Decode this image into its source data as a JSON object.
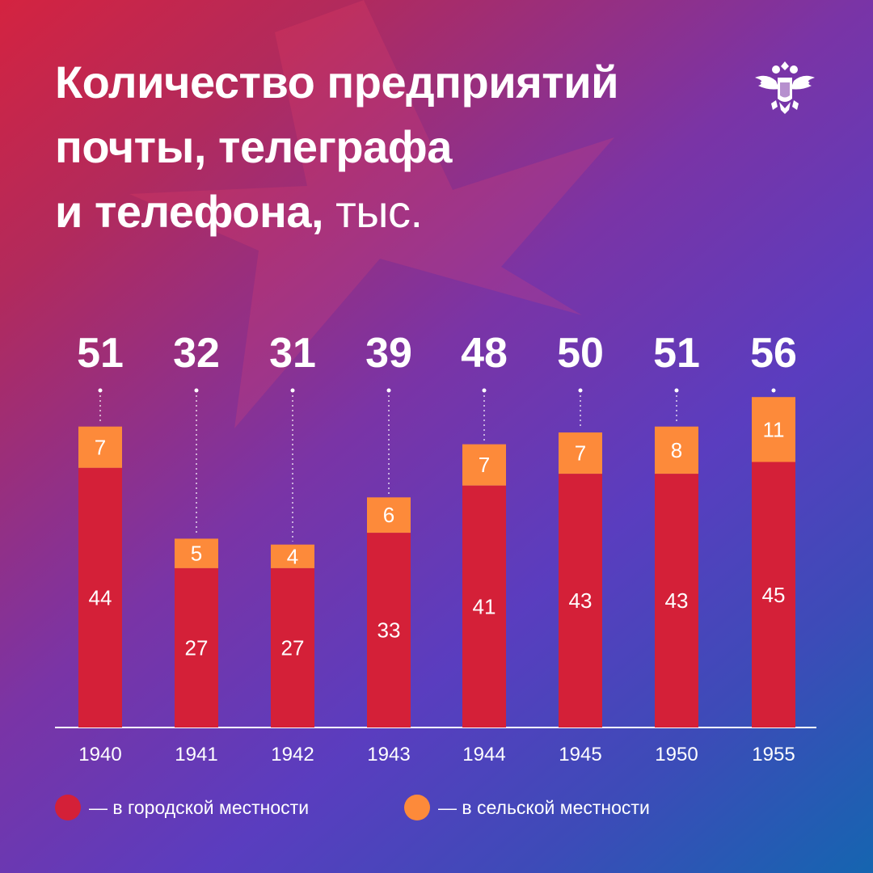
{
  "title": {
    "line1": "Количество предприятий",
    "line2": "почты, телеграфа",
    "line3": "и телефона,",
    "unit": "тыс."
  },
  "colors": {
    "urban": "#d42038",
    "rural": "#fd8a3a",
    "text": "#ffffff"
  },
  "emblem_icon": "double-headed-eagle-emblem",
  "legend": {
    "urban": "— в городской местности",
    "rural": "— в сельской местности"
  },
  "chart_data": {
    "type": "bar",
    "stacked": true,
    "categories": [
      "1940",
      "1941",
      "1942",
      "1943",
      "1944",
      "1945",
      "1950",
      "1955"
    ],
    "series": [
      {
        "name": "в городской местности",
        "color": "#d42038",
        "values": [
          44,
          27,
          27,
          33,
          41,
          43,
          43,
          45
        ]
      },
      {
        "name": "в сельской местности",
        "color": "#fd8a3a",
        "values": [
          7,
          5,
          4,
          6,
          7,
          7,
          8,
          11
        ]
      }
    ],
    "totals": [
      51,
      32,
      31,
      39,
      48,
      50,
      51,
      56
    ],
    "ylim": [
      0,
      56
    ],
    "grid": false,
    "legend_position": "bottom"
  }
}
